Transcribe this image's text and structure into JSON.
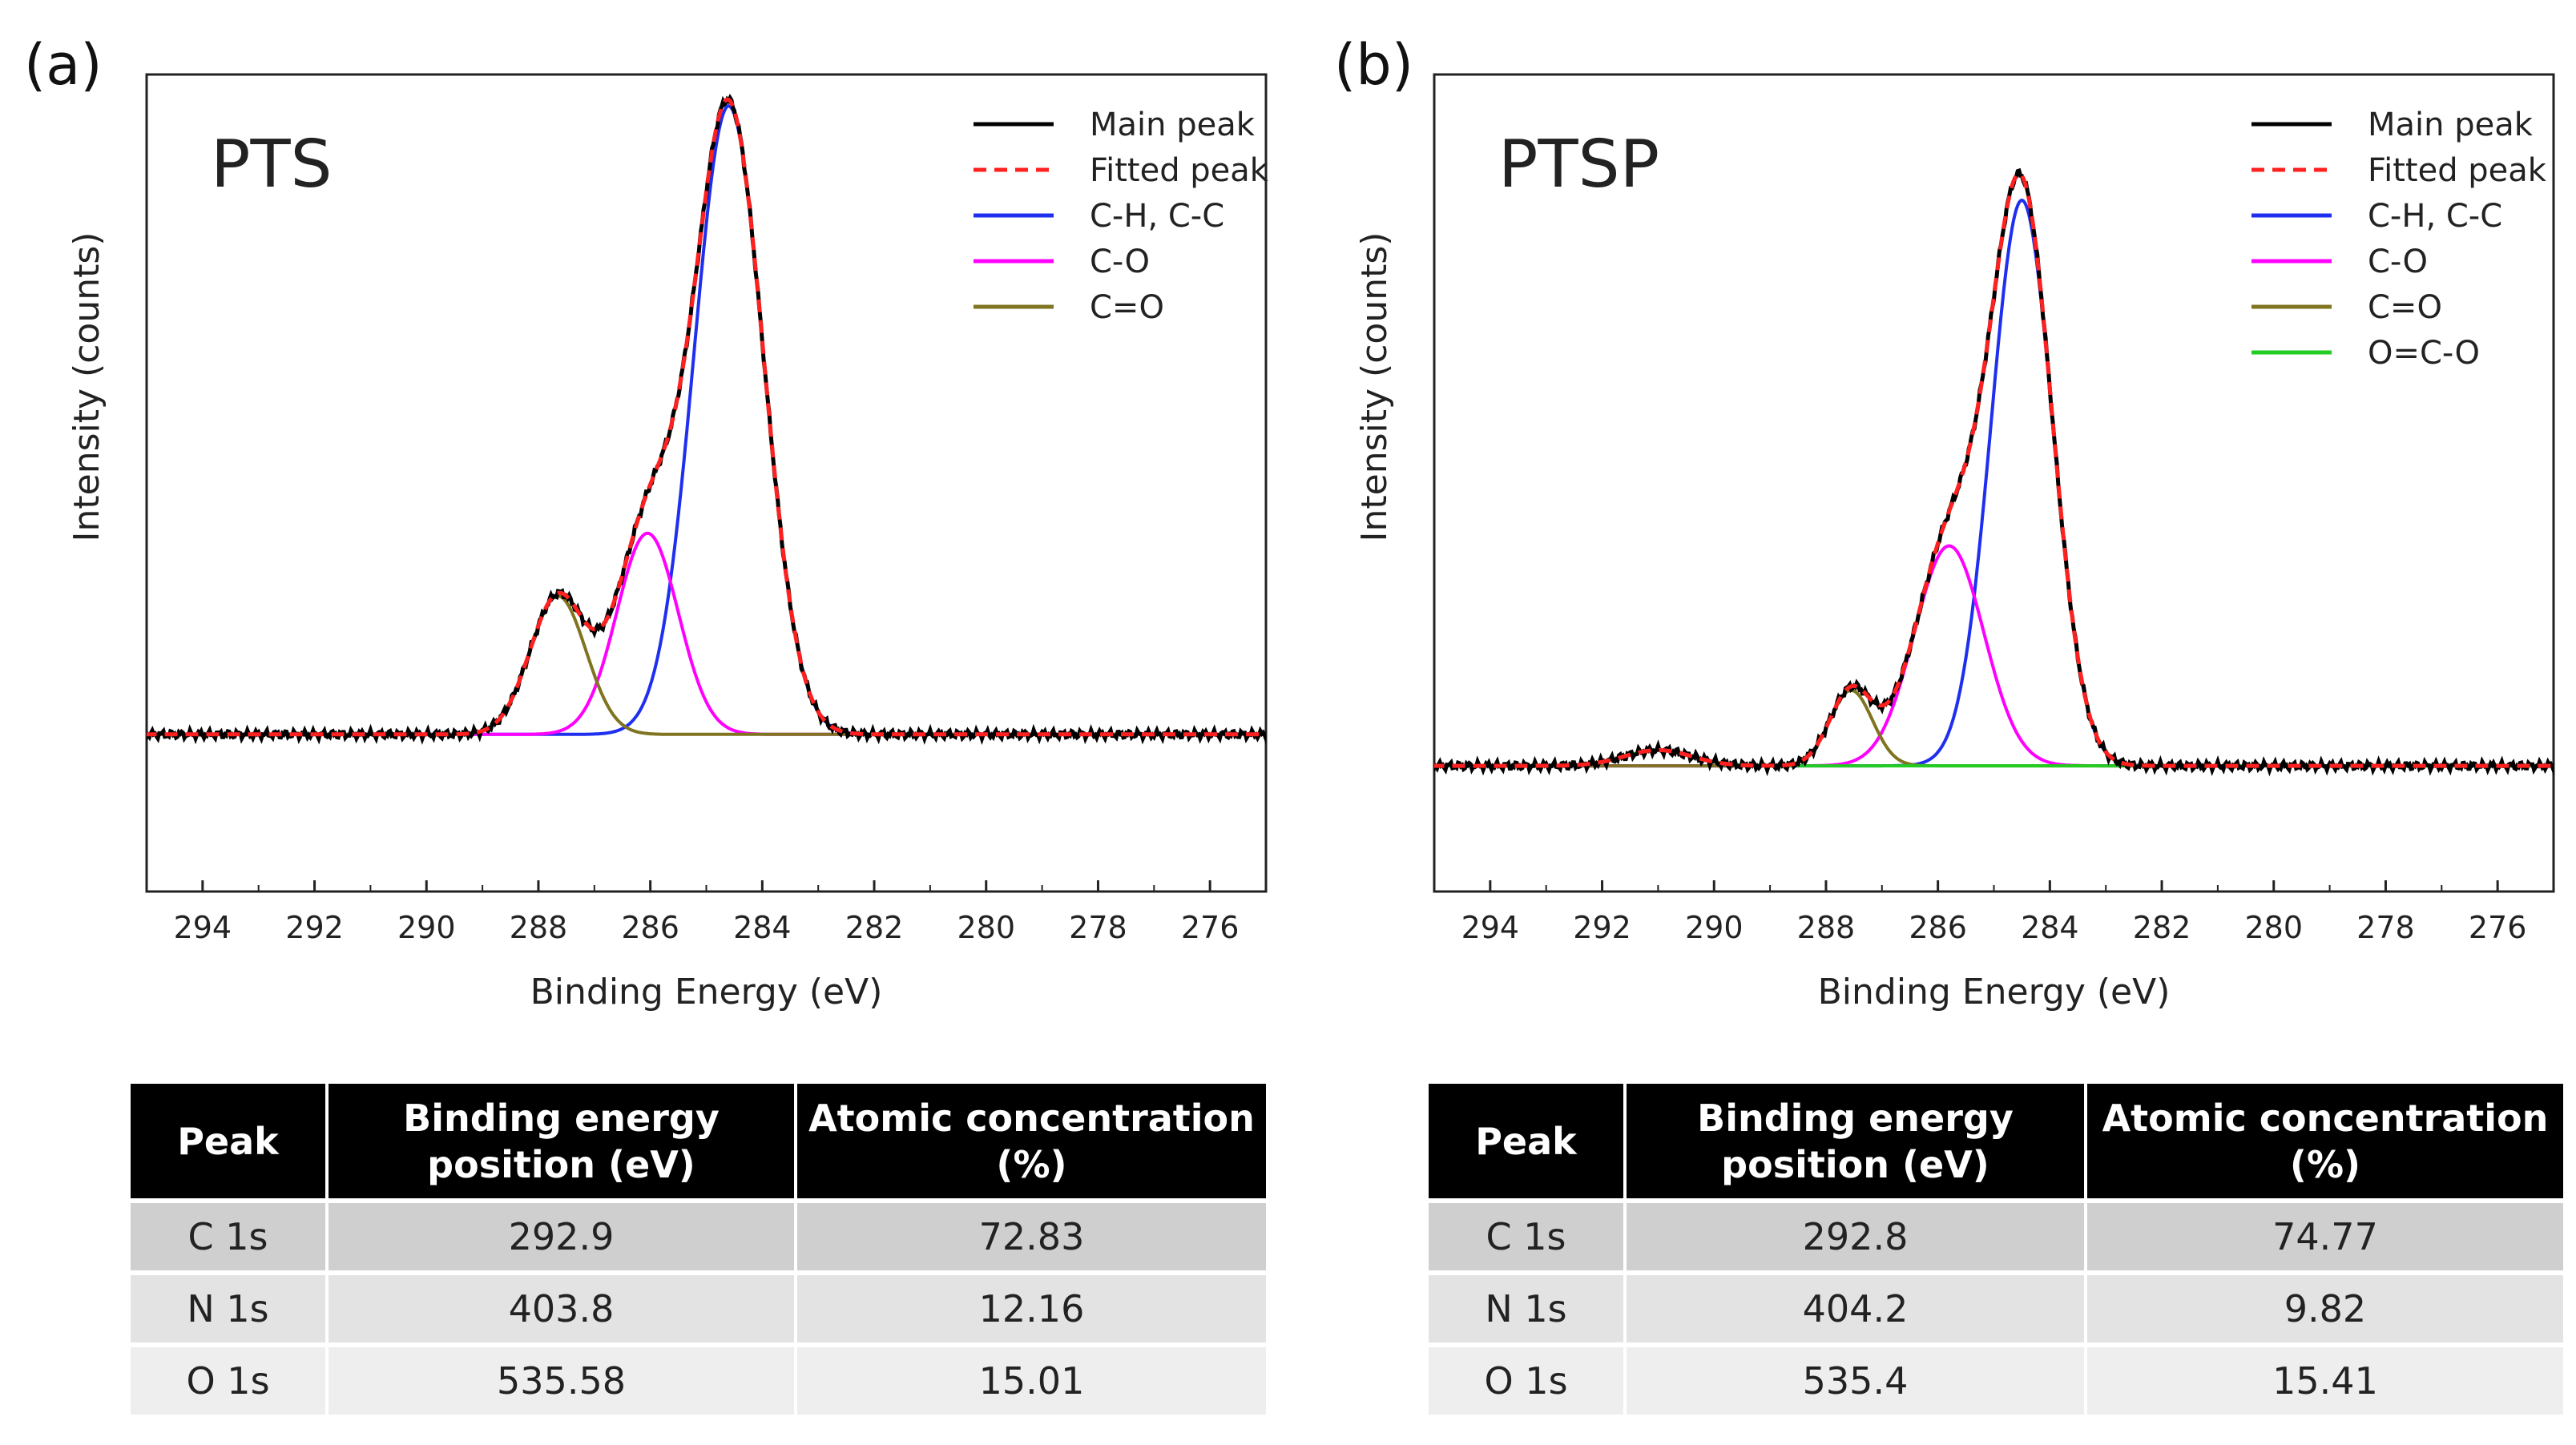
{
  "panels": [
    {
      "label": "(a)"
    },
    {
      "label": "(b)"
    }
  ],
  "chart_data": [
    {
      "type": "line",
      "title": "PTS",
      "xlabel": "Binding Energy (eV)",
      "ylabel": "Intensity (counts)",
      "xlim": [
        295,
        275
      ],
      "ylim": [
        -0.25,
        1.05
      ],
      "xticks": [
        294,
        292,
        290,
        288,
        286,
        284,
        282,
        280,
        278,
        276
      ],
      "grid": false,
      "legend_position": "top-right",
      "legend": [
        "Main peak",
        "Fitted peak",
        "C-H, C-C",
        "C-O",
        "C=O"
      ],
      "components": [
        {
          "name": "C-H, C-C",
          "color": "#1f2ff0",
          "center": 284.6,
          "amplitude": 1.0,
          "sigma": 0.62
        },
        {
          "name": "C-O",
          "color": "#ff00ff",
          "center": 286.05,
          "amplitude": 0.32,
          "sigma": 0.55
        },
        {
          "name": "C=O",
          "color": "#7f7420",
          "center": 287.65,
          "amplitude": 0.22,
          "sigma": 0.5
        }
      ],
      "series": [
        {
          "name": "Main peak",
          "color": "#000000",
          "style": "solid"
        },
        {
          "name": "Fitted peak",
          "color": "#ff2020",
          "style": "dashed"
        }
      ]
    },
    {
      "type": "line",
      "title": "PTSP",
      "xlabel": "Binding Energy (eV)",
      "ylabel": "Intensity (counts)",
      "xlim": [
        295,
        275
      ],
      "ylim": [
        -0.2,
        1.1
      ],
      "xticks": [
        294,
        292,
        290,
        288,
        286,
        284,
        282,
        280,
        278,
        276
      ],
      "grid": false,
      "legend_position": "top-right",
      "legend": [
        "Main peak",
        "Fitted peak",
        "C-H, C-C",
        "C-O",
        "C=O",
        "O=C-O"
      ],
      "components": [
        {
          "name": "C-H, C-C",
          "color": "#1f2ff0",
          "center": 284.5,
          "amplitude": 0.9,
          "sigma": 0.55
        },
        {
          "name": "C-O",
          "color": "#ff00ff",
          "center": 285.8,
          "amplitude": 0.35,
          "sigma": 0.62
        },
        {
          "name": "C=O",
          "color": "#7f7420",
          "center": 287.55,
          "amplitude": 0.12,
          "sigma": 0.38
        },
        {
          "name": "O=C-O",
          "color": "#22cc22",
          "center": 291.0,
          "amplitude": 0.025,
          "sigma": 0.6
        }
      ],
      "series": [
        {
          "name": "Main peak",
          "color": "#000000",
          "style": "solid"
        },
        {
          "name": "Fitted peak",
          "color": "#ff2020",
          "style": "dashed"
        }
      ]
    }
  ],
  "tables": [
    {
      "headers": [
        "Peak",
        "Binding energy position (eV)",
        "Atomic concentration (%)"
      ],
      "rows": [
        [
          "C 1s",
          "292.9",
          "72.83"
        ],
        [
          "N 1s",
          "403.8",
          "12.16"
        ],
        [
          "O 1s",
          "535.58",
          "15.01"
        ]
      ]
    },
    {
      "headers": [
        "Peak",
        "Binding energy position (eV)",
        "Atomic concentration (%)"
      ],
      "rows": [
        [
          "C 1s",
          "292.8",
          "74.77"
        ],
        [
          "N 1s",
          "404.2",
          "9.82"
        ],
        [
          "O 1s",
          "535.4",
          "15.41"
        ]
      ]
    }
  ]
}
